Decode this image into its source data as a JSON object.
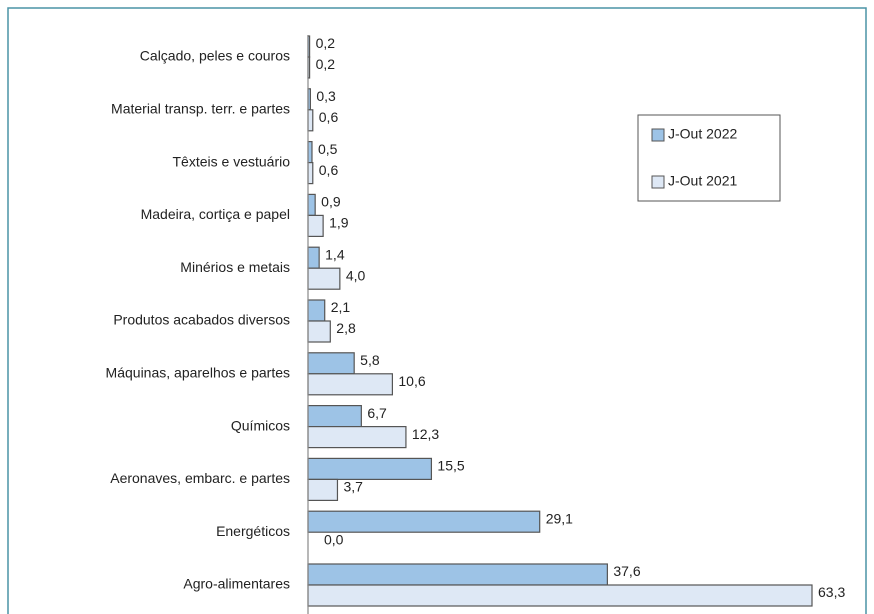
{
  "chart_data": {
    "type": "bar",
    "orientation": "horizontal",
    "categories": [
      "Calçado, peles e couros",
      "Material transp. terr. e partes",
      "Têxteis e vestuário",
      "Madeira, cortiça e papel",
      "Minérios e metais",
      "Produtos acabados diversos",
      "Máquinas, aparelhos e partes",
      "Químicos",
      "Aeronaves, embarc. e partes",
      "Energéticos",
      "Agro-alimentares"
    ],
    "series": [
      {
        "name": "J-Out 2022",
        "color": "#9dc3e6",
        "values": [
          0.2,
          0.3,
          0.5,
          0.9,
          1.4,
          2.1,
          5.8,
          6.7,
          15.5,
          29.1,
          37.6
        ],
        "value_labels": [
          "0,2",
          "0,3",
          "0,5",
          "0,9",
          "1,4",
          "2,1",
          "5,8",
          "6,7",
          "15,5",
          "29,1",
          "37,6"
        ]
      },
      {
        "name": "J-Out 2021",
        "color": "#dee8f5",
        "values": [
          0.2,
          0.6,
          0.6,
          1.9,
          4.0,
          2.8,
          10.6,
          12.3,
          3.7,
          0.0,
          63.3
        ],
        "value_labels": [
          "0,2",
          "0,6",
          "0,6",
          "1,9",
          "4,0",
          "2,8",
          "10,6",
          "12,3",
          "3,7",
          "0,0",
          "63,3"
        ]
      }
    ],
    "legend": "upper right"
  }
}
